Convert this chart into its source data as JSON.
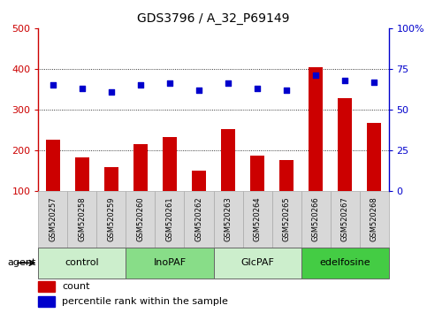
{
  "title": "GDS3796 / A_32_P69149",
  "samples": [
    "GSM520257",
    "GSM520258",
    "GSM520259",
    "GSM520260",
    "GSM520261",
    "GSM520262",
    "GSM520263",
    "GSM520264",
    "GSM520265",
    "GSM520266",
    "GSM520267",
    "GSM520268"
  ],
  "counts": [
    225,
    183,
    158,
    215,
    232,
    149,
    252,
    187,
    175,
    405,
    327,
    268
  ],
  "percentile_ranks": [
    65,
    63,
    61,
    65,
    66,
    62,
    66,
    63,
    62,
    71,
    68,
    67
  ],
  "bar_color": "#cc0000",
  "dot_color": "#0000cc",
  "ylim_left": [
    100,
    500
  ],
  "ylim_right": [
    0,
    100
  ],
  "yticks_left": [
    100,
    200,
    300,
    400,
    500
  ],
  "ytick_labels_left": [
    "100",
    "200",
    "300",
    "400",
    "500"
  ],
  "yticks_right": [
    0,
    25,
    50,
    75,
    100
  ],
  "ytick_labels_right": [
    "0",
    "25",
    "50",
    "75",
    "100%"
  ],
  "groups": [
    {
      "label": "control",
      "start": 0,
      "end": 3,
      "color": "#cceecc"
    },
    {
      "label": "InoPAF",
      "start": 3,
      "end": 6,
      "color": "#88dd88"
    },
    {
      "label": "GlcPAF",
      "start": 6,
      "end": 9,
      "color": "#cceecc"
    },
    {
      "label": "edelfosine",
      "start": 9,
      "end": 12,
      "color": "#44cc44"
    }
  ],
  "agent_label": "agent",
  "legend_count": "count",
  "legend_percentile": "percentile rank within the sample",
  "bar_width": 0.5,
  "xticklabel_fontsize": 6,
  "title_fontsize": 10,
  "tick_gray_bg": "#d8d8d8"
}
